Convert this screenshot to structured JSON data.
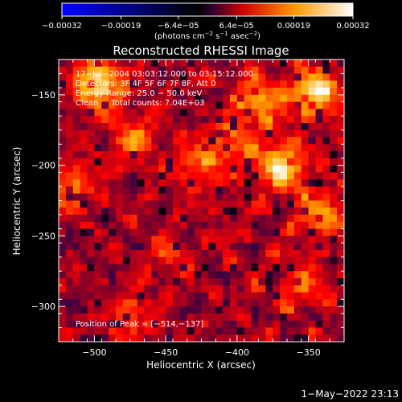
{
  "chart_data": {
    "type": "heatmap",
    "title": "Reconstructed RHESSI Image",
    "xlabel": "Heliocentric X (arcsec)",
    "ylabel": "Heliocentric Y (arcsec)",
    "xlim": [
      -525,
      -325
    ],
    "ylim": [
      -325,
      -125
    ],
    "x_ticks": [
      -500,
      -450,
      -400,
      -350
    ],
    "x_tick_labels": [
      "−500",
      "−450",
      "−400",
      "−350"
    ],
    "y_ticks": [
      -150,
      -200,
      -250,
      -300
    ],
    "y_tick_labels": [
      "−150",
      "−200",
      "−250",
      "−300"
    ],
    "colorbar": {
      "range": [
        -0.00032,
        0.00032
      ],
      "ticks": [
        -0.00032,
        -0.00019,
        -6.4e-05,
        6.4e-05,
        0.00019,
        0.00032
      ],
      "tick_labels": [
        "−0.00032",
        "−0.00019",
        "−6.4e−05",
        "6.4e−05",
        "0.00019",
        "0.00032"
      ],
      "units_prefix": "(photons cm",
      "units_exp1": "−2",
      "units_mid": " s",
      "units_exp2": "−1",
      "units_mid2": " asec",
      "units_exp3": "−2",
      "units_suffix": ")"
    },
    "peak": {
      "x": -514,
      "y": -137
    },
    "grid": false,
    "legend": "none"
  },
  "info": {
    "line1": "17−Jul−2004 03:03:12.000 to 03:15:12.000",
    "line2": "Detectors: 3F 4F 5F 6F 7F 8F, Att 0",
    "line3": "Energy Range: 25.0 − 50.0 keV",
    "line4": "Clean     Total counts: 7.04E+03",
    "peak_label": "Position of Peak = [−514,−137]"
  },
  "footer": {
    "date": "1−May−2022 23:13"
  },
  "colors": {
    "background": "#000000",
    "foreground": "#ffffff",
    "colormap": [
      "#0000ff",
      "#000000",
      "#400040",
      "#ff0000",
      "#ffaa00",
      "#ffffff"
    ]
  }
}
